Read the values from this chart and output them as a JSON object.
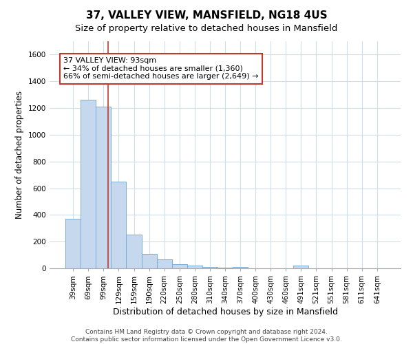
{
  "title": "37, VALLEY VIEW, MANSFIELD, NG18 4US",
  "subtitle": "Size of property relative to detached houses in Mansfield",
  "xlabel": "Distribution of detached houses by size in Mansfield",
  "ylabel": "Number of detached properties",
  "categories": [
    "39sqm",
    "69sqm",
    "99sqm",
    "129sqm",
    "159sqm",
    "190sqm",
    "220sqm",
    "250sqm",
    "280sqm",
    "310sqm",
    "340sqm",
    "370sqm",
    "400sqm",
    "430sqm",
    "460sqm",
    "491sqm",
    "521sqm",
    "551sqm",
    "581sqm",
    "611sqm",
    "641sqm"
  ],
  "values": [
    370,
    1260,
    1210,
    650,
    255,
    110,
    65,
    30,
    20,
    10,
    5,
    10,
    0,
    0,
    0,
    20,
    0,
    0,
    0,
    0,
    0
  ],
  "bar_color": "#c5d8ed",
  "bar_edge_color": "#7aadd4",
  "vline_color": "#c0392b",
  "vline_pos": 2.3,
  "annotation_text": "37 VALLEY VIEW: 93sqm\n← 34% of detached houses are smaller (1,360)\n66% of semi-detached houses are larger (2,649) →",
  "annotation_box_color": "#ffffff",
  "annotation_box_edge_color": "#c0392b",
  "ylim": [
    0,
    1700
  ],
  "yticks": [
    0,
    200,
    400,
    600,
    800,
    1000,
    1200,
    1400,
    1600
  ],
  "footer": "Contains HM Land Registry data © Crown copyright and database right 2024.\nContains public sector information licensed under the Open Government Licence v3.0.",
  "bg_color": "#ffffff",
  "grid_color": "#d0dde8",
  "title_fontsize": 11,
  "subtitle_fontsize": 9.5,
  "label_fontsize": 8.5,
  "tick_fontsize": 7.5,
  "footer_fontsize": 6.5,
  "annot_fontsize": 8
}
